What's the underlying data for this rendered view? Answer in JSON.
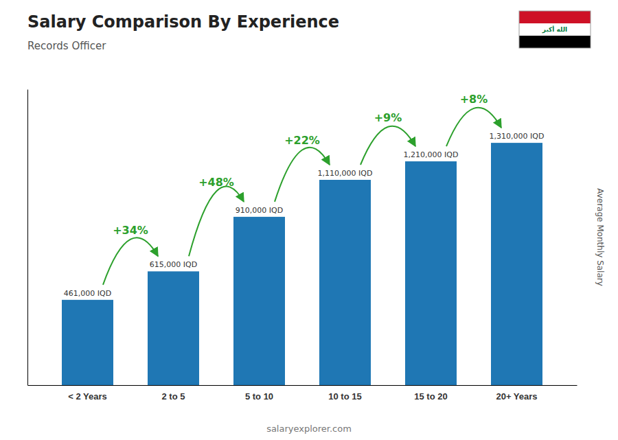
{
  "chart_data": {
    "type": "bar",
    "title": "Salary Comparison By Experience",
    "subtitle": "Records Officer",
    "ylabel": "Average Monthly Salary",
    "categories": [
      "< 2 Years",
      "2 to 5",
      "5 to 10",
      "10 to 15",
      "15 to 20",
      "20+ Years"
    ],
    "values": [
      461000,
      615000,
      910000,
      1110000,
      1210000,
      1310000
    ],
    "value_labels": [
      "461,000 IQD",
      "615,000 IQD",
      "910,000 IQD",
      "1,110,000 IQD",
      "1,210,000 IQD",
      "1,310,000 IQD"
    ],
    "data_labels": true,
    "annotations": [
      "+34%",
      "+48%",
      "+22%",
      "+9%",
      "+8%"
    ],
    "watermark": "salaryexplorer.com",
    "flag_text": "الله أكبر",
    "ylim": [
      0,
      1600000
    ],
    "tick_labels": "x",
    "grid": false
  }
}
